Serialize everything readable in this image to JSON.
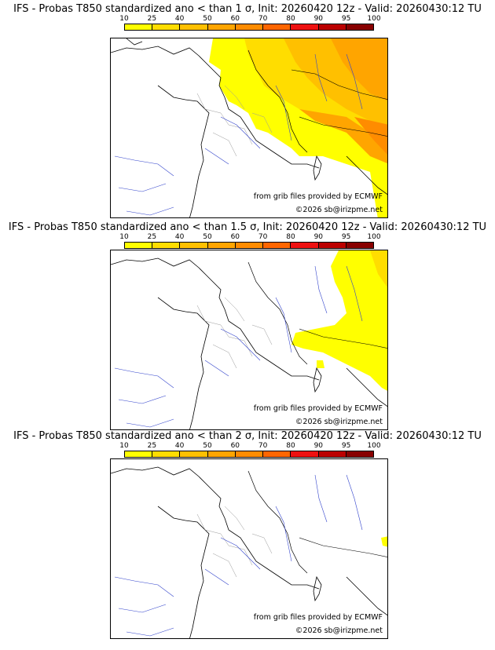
{
  "legend": {
    "ticks": [
      "10",
      "25",
      "40",
      "50",
      "60",
      "70",
      "80",
      "90",
      "95",
      "100"
    ],
    "colors": [
      "#ffff00",
      "#ffdd00",
      "#ffc000",
      "#ffa500",
      "#ff8c00",
      "#ff6600",
      "#ee1111",
      "#bb0000",
      "#880000",
      "#550000"
    ]
  },
  "panels": [
    {
      "title": "IFS - Probas T850  standardized ano < than 1 σ, Init: 20260420 12z - Valid: 20260430:12 TU",
      "credit": "from grib files provided by ECMWF",
      "copyright": "©2026 sb@irizpme.net",
      "threshold_sigma": "1"
    },
    {
      "title": "IFS - Probas T850  standardized ano < than 1.5 σ, Init: 20260420 12z - Valid: 20260430:12 TU",
      "credit": "from grib files provided by ECMWF",
      "copyright": "©2026 sb@irizpme.net",
      "threshold_sigma": "1.5"
    },
    {
      "title": "IFS - Probas T850  standardized ano < than 2 σ, Init: 20260420 12z - Valid: 20260430:12 TU",
      "credit": "from grib files provided by ECMWF",
      "copyright": "©2026 sb@irizpme.net",
      "threshold_sigma": "2"
    }
  ]
}
